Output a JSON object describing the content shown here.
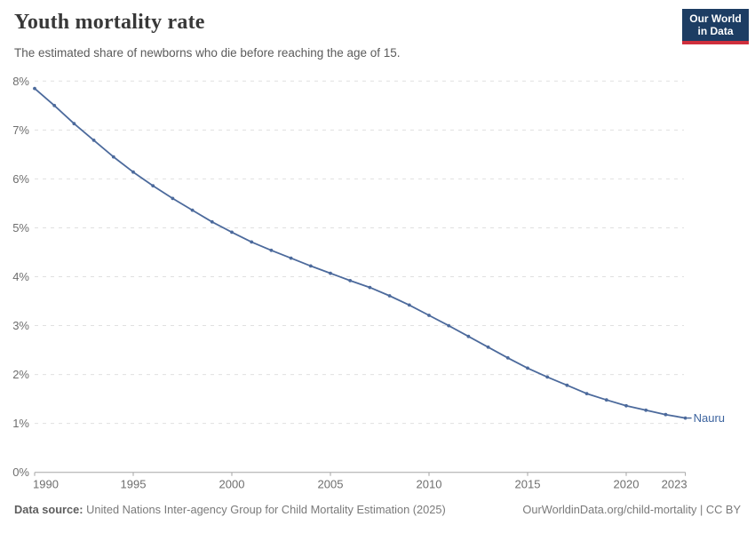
{
  "header": {
    "title": "Youth mortality rate",
    "subtitle": "The estimated share of newborns who die before reaching the age of 15."
  },
  "logo": {
    "line1": "Our World",
    "line2": "in Data"
  },
  "chart_data": {
    "type": "line",
    "title": "Youth mortality rate",
    "subtitle": "The estimated share of newborns who die before reaching the age of 15.",
    "x": [
      1990,
      1991,
      1992,
      1993,
      1994,
      1995,
      1996,
      1997,
      1998,
      1999,
      2000,
      2001,
      2002,
      2003,
      2004,
      2005,
      2006,
      2007,
      2008,
      2009,
      2010,
      2011,
      2012,
      2013,
      2014,
      2015,
      2016,
      2017,
      2018,
      2019,
      2020,
      2021,
      2022,
      2023
    ],
    "series": [
      {
        "name": "Nauru",
        "values": [
          7.85,
          7.5,
          7.13,
          6.79,
          6.45,
          6.14,
          5.86,
          5.6,
          5.36,
          5.12,
          4.91,
          4.71,
          4.54,
          4.38,
          4.22,
          4.07,
          3.92,
          3.78,
          3.61,
          3.42,
          3.21,
          3.0,
          2.78,
          2.56,
          2.34,
          2.13,
          1.95,
          1.78,
          1.61,
          1.48,
          1.36,
          1.27,
          1.18,
          1.11
        ]
      }
    ],
    "ylim": [
      0,
      8
    ],
    "yticks": [
      0,
      1,
      2,
      3,
      4,
      5,
      6,
      7,
      8
    ],
    "ytick_suffix": "%",
    "xticks": [
      1990,
      1995,
      2000,
      2005,
      2010,
      2015,
      2020,
      2023
    ],
    "grid": "horizontal-dashed",
    "markers": "dots",
    "entity_label": "Nauru",
    "legend_position": "end-of-line"
  },
  "footer": {
    "datasource_label": "Data source:",
    "datasource_text": " United Nations Inter-agency Group for Child Mortality Estimation (2025)",
    "credit": "OurWorldinData.org/child-mortality | CC BY"
  },
  "colors": {
    "line": "#4C6A9C",
    "entity_label": "#3d649f",
    "logo_bg": "#1d3d63",
    "logo_accent": "#cf2f3d",
    "grid": "#e0e0e0",
    "axis": "#a5a5a5",
    "tick_label": "#6e6e6e",
    "title": "#383838",
    "subtitle": "#5b5b5b"
  }
}
